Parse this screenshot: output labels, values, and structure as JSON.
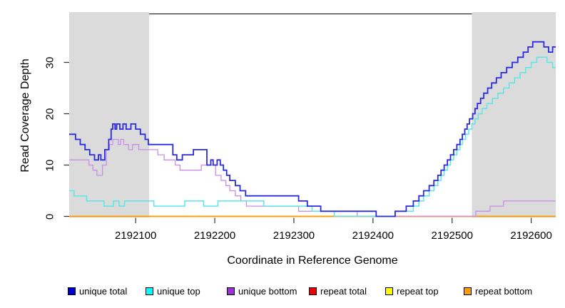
{
  "chart_data": {
    "type": "line",
    "subtype": "step-coverage-plot",
    "xlabel": "Coordinate in Reference Genome",
    "ylabel": "Read Coverage Depth",
    "xlim": [
      2192016,
      2192631
    ],
    "ylim": [
      0,
      38
    ],
    "x_ticks": [
      2192100,
      2192200,
      2192300,
      2192400,
      2192500,
      2192600
    ],
    "y_ticks": [
      0,
      10,
      20,
      30
    ],
    "grid": false,
    "legend_position": "bottom",
    "shaded_regions": {
      "color": "#dbdbdb",
      "regions": [
        {
          "name": "left-shade",
          "x0": 2192016,
          "x1": 2192117
        },
        {
          "name": "right-shade",
          "x0": 2192525,
          "x1": 2192631
        }
      ]
    },
    "series": [
      {
        "name": "unique total",
        "line_color": "#2a2ae0",
        "legend_color": "#0000cd",
        "line_width": 1.8,
        "steps": [
          [
            2192016,
            16
          ],
          [
            2192024,
            15
          ],
          [
            2192030,
            14
          ],
          [
            2192036,
            13
          ],
          [
            2192042,
            12
          ],
          [
            2192048,
            11
          ],
          [
            2192053,
            12
          ],
          [
            2192056,
            11
          ],
          [
            2192061,
            13
          ],
          [
            2192066,
            15
          ],
          [
            2192069,
            17
          ],
          [
            2192071,
            18
          ],
          [
            2192074,
            17
          ],
          [
            2192076,
            18
          ],
          [
            2192080,
            17
          ],
          [
            2192084,
            18
          ],
          [
            2192088,
            17
          ],
          [
            2192094,
            18
          ],
          [
            2192100,
            17
          ],
          [
            2192106,
            16
          ],
          [
            2192112,
            15
          ],
          [
            2192116,
            14
          ],
          [
            2192147,
            12
          ],
          [
            2192152,
            11
          ],
          [
            2192159,
            12
          ],
          [
            2192173,
            13
          ],
          [
            2192190,
            10
          ],
          [
            2192195,
            11
          ],
          [
            2192198,
            10
          ],
          [
            2192203,
            11
          ],
          [
            2192207,
            10
          ],
          [
            2192211,
            9
          ],
          [
            2192215,
            8
          ],
          [
            2192219,
            7
          ],
          [
            2192226,
            6
          ],
          [
            2192232,
            5
          ],
          [
            2192239,
            4
          ],
          [
            2192306,
            3
          ],
          [
            2192317,
            2
          ],
          [
            2192334,
            1
          ],
          [
            2192404,
            0
          ],
          [
            2192428,
            1
          ],
          [
            2192442,
            2
          ],
          [
            2192451,
            3
          ],
          [
            2192458,
            4
          ],
          [
            2192464,
            5
          ],
          [
            2192471,
            6
          ],
          [
            2192477,
            7
          ],
          [
            2192482,
            8
          ],
          [
            2192486,
            9
          ],
          [
            2192490,
            10
          ],
          [
            2192494,
            11
          ],
          [
            2192498,
            12
          ],
          [
            2192502,
            13
          ],
          [
            2192506,
            14
          ],
          [
            2192510,
            15
          ],
          [
            2192513,
            16
          ],
          [
            2192516,
            17
          ],
          [
            2192519,
            18
          ],
          [
            2192522,
            19
          ],
          [
            2192526,
            20
          ],
          [
            2192529,
            21
          ],
          [
            2192532,
            22
          ],
          [
            2192536,
            23
          ],
          [
            2192540,
            24
          ],
          [
            2192545,
            25
          ],
          [
            2192550,
            26
          ],
          [
            2192556,
            27
          ],
          [
            2192562,
            28
          ],
          [
            2192569,
            29
          ],
          [
            2192576,
            30
          ],
          [
            2192583,
            31
          ],
          [
            2192590,
            32
          ],
          [
            2192596,
            33
          ],
          [
            2192602,
            34
          ],
          [
            2192616,
            33
          ],
          [
            2192622,
            32
          ],
          [
            2192627,
            33
          ]
        ]
      },
      {
        "name": "unique top",
        "line_color": "#5ce6e6",
        "legend_color": "#00ffff",
        "line_width": 1.5,
        "steps": [
          [
            2192016,
            5
          ],
          [
            2192022,
            4
          ],
          [
            2192038,
            3
          ],
          [
            2192060,
            2
          ],
          [
            2192072,
            3
          ],
          [
            2192079,
            2
          ],
          [
            2192086,
            3
          ],
          [
            2192123,
            2
          ],
          [
            2192162,
            3
          ],
          [
            2192186,
            2
          ],
          [
            2192204,
            3
          ],
          [
            2192262,
            2
          ],
          [
            2192323,
            1
          ],
          [
            2192351,
            0
          ],
          [
            2192428,
            1
          ],
          [
            2192451,
            2
          ],
          [
            2192458,
            3
          ],
          [
            2192464,
            4
          ],
          [
            2192471,
            5
          ],
          [
            2192477,
            6
          ],
          [
            2192482,
            7
          ],
          [
            2192486,
            8
          ],
          [
            2192490,
            9
          ],
          [
            2192494,
            10
          ],
          [
            2192498,
            11
          ],
          [
            2192502,
            12
          ],
          [
            2192506,
            13
          ],
          [
            2192510,
            14
          ],
          [
            2192513,
            15
          ],
          [
            2192517,
            16
          ],
          [
            2192521,
            17
          ],
          [
            2192525,
            18
          ],
          [
            2192529,
            19
          ],
          [
            2192533,
            20
          ],
          [
            2192538,
            21
          ],
          [
            2192544,
            22
          ],
          [
            2192551,
            23
          ],
          [
            2192558,
            24
          ],
          [
            2192565,
            25
          ],
          [
            2192572,
            26
          ],
          [
            2192579,
            27
          ],
          [
            2192586,
            28
          ],
          [
            2192593,
            29
          ],
          [
            2192600,
            30
          ],
          [
            2192607,
            31
          ],
          [
            2192620,
            30
          ],
          [
            2192627,
            29
          ]
        ]
      },
      {
        "name": "unique bottom",
        "line_color": "#c98fe8",
        "legend_color": "#9b30d9",
        "line_width": 1.3,
        "steps": [
          [
            2192016,
            11
          ],
          [
            2192041,
            10
          ],
          [
            2192046,
            9
          ],
          [
            2192051,
            8
          ],
          [
            2192058,
            10
          ],
          [
            2192063,
            13
          ],
          [
            2192067,
            14
          ],
          [
            2192071,
            15
          ],
          [
            2192078,
            14
          ],
          [
            2192081,
            15
          ],
          [
            2192085,
            14
          ],
          [
            2192091,
            13
          ],
          [
            2192096,
            14
          ],
          [
            2192104,
            13
          ],
          [
            2192128,
            12
          ],
          [
            2192136,
            11
          ],
          [
            2192150,
            10
          ],
          [
            2192156,
            9
          ],
          [
            2192183,
            10
          ],
          [
            2192201,
            8
          ],
          [
            2192208,
            7
          ],
          [
            2192214,
            6
          ],
          [
            2192219,
            5
          ],
          [
            2192226,
            4
          ],
          [
            2192233,
            3
          ],
          [
            2192240,
            2
          ],
          [
            2192306,
            1
          ],
          [
            2192380,
            0
          ],
          [
            2192530,
            1
          ],
          [
            2192548,
            2
          ],
          [
            2192565,
            3
          ]
        ]
      },
      {
        "name": "repeat total",
        "line_color": "#e05070",
        "legend_color": "#ee0000",
        "line_width": 1.2,
        "steps": [
          [
            2192016,
            0
          ]
        ]
      },
      {
        "name": "repeat top",
        "line_color": "#ffff00",
        "legend_color": "#ffff00",
        "line_width": 1.2,
        "steps": [
          [
            2192016,
            0
          ]
        ]
      },
      {
        "name": "repeat bottom",
        "line_color": "#ff9a00",
        "legend_color": "#ffa000",
        "line_width": 1.8,
        "steps": [
          [
            2192016,
            0
          ]
        ]
      }
    ]
  },
  "axes": {
    "x_title": "Coordinate in Reference Genome",
    "y_title": "Read Coverage Depth",
    "x_tick_labels": [
      "2192100",
      "2192200",
      "2192300",
      "2192400",
      "2192500",
      "2192600"
    ],
    "y_tick_labels": [
      "0",
      "10",
      "20",
      "30"
    ]
  },
  "legend": {
    "items": [
      {
        "label": "unique total",
        "color": "#0000cd"
      },
      {
        "label": "unique top",
        "color": "#00ffff"
      },
      {
        "label": "unique bottom",
        "color": "#9b30d9"
      },
      {
        "label": "repeat total",
        "color": "#ee0000"
      },
      {
        "label": "repeat top",
        "color": "#ffff00"
      },
      {
        "label": "repeat bottom",
        "color": "#ffa000"
      }
    ]
  }
}
